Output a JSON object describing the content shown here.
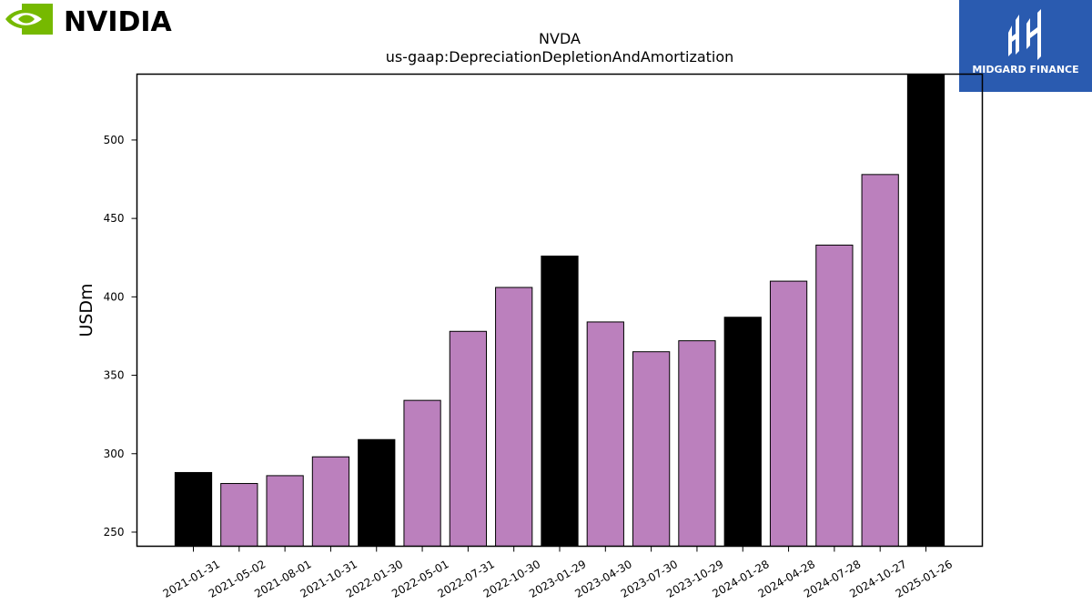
{
  "logos": {
    "left": {
      "name": "nvidia-logo",
      "text": "NVIDIA",
      "eye_color": "#76b900"
    },
    "right": {
      "name": "midgard-finance-logo",
      "text": "MIDGARD FINANCE",
      "bg_color": "#2a5bb0"
    }
  },
  "chart_data": {
    "type": "bar",
    "title": "NVDA",
    "subtitle": "us-gaap:DepreciationDepletionAndAmortization",
    "xlabel": "",
    "ylabel": "USDm",
    "ylim": [
      241,
      542
    ],
    "yticks": [
      250,
      300,
      350,
      400,
      450,
      500
    ],
    "grid": false,
    "categories": [
      "2021-01-31",
      "2021-05-02",
      "2021-08-01",
      "2021-10-31",
      "2022-01-30",
      "2022-05-01",
      "2022-07-31",
      "2022-10-30",
      "2023-01-29",
      "2023-04-30",
      "2023-07-30",
      "2023-10-29",
      "2024-01-28",
      "2024-04-28",
      "2024-07-28",
      "2024-10-27",
      "2025-01-26"
    ],
    "values": [
      288,
      281,
      286,
      298,
      309,
      334,
      378,
      406,
      426,
      384,
      365,
      372,
      387,
      410,
      433,
      478,
      542
    ],
    "fiscal_year_end": [
      true,
      false,
      false,
      false,
      true,
      false,
      false,
      false,
      true,
      false,
      false,
      false,
      true,
      false,
      false,
      false,
      true
    ],
    "colors": {
      "fiscal_year_end": "#000000",
      "quarter": "#bb80bd",
      "edge": "#000000"
    }
  }
}
